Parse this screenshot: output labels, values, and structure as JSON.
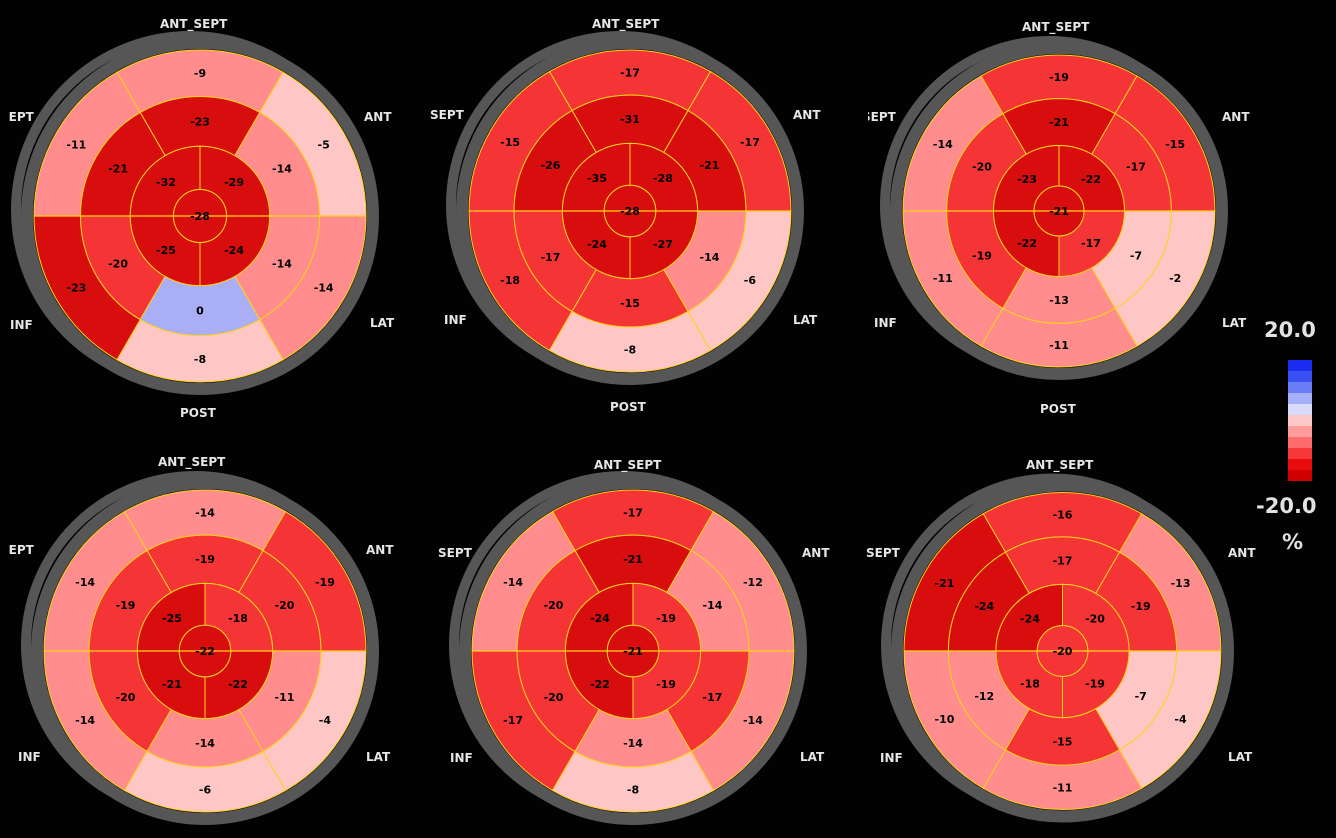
{
  "directions": {
    "ant_sept": "ANT_SEPT",
    "ant": "ANT",
    "lat": "LAT",
    "post": "POST",
    "inf": "INF",
    "sept": "SEPT"
  },
  "legend": {
    "max_label": "20.0",
    "min_label": "-20.0",
    "unit": "%",
    "colors": [
      "#1a2cf0",
      "#3a50f4",
      "#6a7cf6",
      "#a6b0f8",
      "#d8dcfa",
      "#ffc8c8",
      "#ff9c9c",
      "#ff6c6c",
      "#f83838",
      "#e80c0c",
      "#d00000"
    ]
  },
  "colors": {
    "ring": "#565656",
    "grid_line": "#ffd21a",
    "level_light": "#ffc6c6",
    "level_mid": "#ff8d8d",
    "level_red": "#f53535",
    "level_dark": "#d80d0d",
    "level_blue": "#a9aef5"
  },
  "bullseyes": [
    {
      "basal": [
        "-9",
        "-5",
        "-14",
        "-8",
        "-23",
        "-11"
      ],
      "mid": [
        "-23",
        "-14",
        "-14",
        "0",
        "-20",
        "-21"
      ],
      "apical": [
        "-29",
        "-24",
        "-25",
        "-32"
      ],
      "apex": "-28"
    },
    {
      "basal": [
        "-17",
        "-17",
        "-6",
        "-8",
        "-18",
        "-15"
      ],
      "mid": [
        "-31",
        "-21",
        "-14",
        "-15",
        "-17",
        "-26"
      ],
      "apical": [
        "-28",
        "-27",
        "-24",
        "-35"
      ],
      "apex": "-28"
    },
    {
      "basal": [
        "-19",
        "-15",
        "-2",
        "-11",
        "-11",
        "-14"
      ],
      "mid": [
        "-21",
        "-17",
        "-7",
        "-13",
        "-19",
        "-20"
      ],
      "apical": [
        "-22",
        "-17",
        "-22",
        "-23"
      ],
      "apex": "-21"
    },
    {
      "basal": [
        "-14",
        "-19",
        "-4",
        "-6",
        "-14",
        "-14"
      ],
      "mid": [
        "-19",
        "-20",
        "-11",
        "-14",
        "-20",
        "-19"
      ],
      "apical": [
        "-18",
        "-22",
        "-21",
        "-25"
      ],
      "apex": "-22"
    },
    {
      "basal": [
        "-17",
        "-12",
        "-14",
        "-8",
        "-17",
        "-14"
      ],
      "mid": [
        "-21",
        "-14",
        "-17",
        "-14",
        "-20",
        "-20"
      ],
      "apical": [
        "-19",
        "-19",
        "-22",
        "-24"
      ],
      "apex": "-21"
    },
    {
      "basal": [
        "-16",
        "-13",
        "-4",
        "-11",
        "-10",
        "-21"
      ],
      "mid": [
        "-17",
        "-19",
        "-7",
        "-15",
        "-12",
        "-24"
      ],
      "apical": [
        "-20",
        "-19",
        "-18",
        "-24"
      ],
      "apex": "-20"
    }
  ]
}
